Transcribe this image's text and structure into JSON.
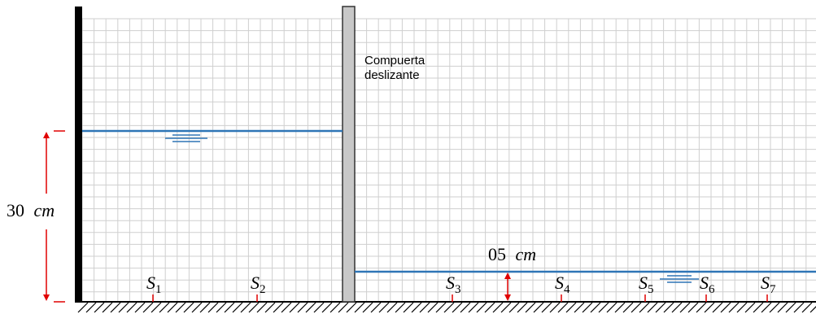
{
  "gate": {
    "label_line1": "Compuerta",
    "label_line2": "deslizante"
  },
  "dimensions": {
    "left_depth": {
      "value": "30",
      "unit": "cm"
    },
    "right_depth": {
      "value": "05",
      "unit": "cm"
    }
  },
  "sections": [
    {
      "letter": "S",
      "sub": "1"
    },
    {
      "letter": "S",
      "sub": "2"
    },
    {
      "letter": "S",
      "sub": "3"
    },
    {
      "letter": "S",
      "sub": "4"
    },
    {
      "letter": "S",
      "sub": "5"
    },
    {
      "letter": "S",
      "sub": "6"
    },
    {
      "letter": "S",
      "sub": "7"
    }
  ],
  "colors": {
    "water": "#2e75b6",
    "dimension": "#e00000",
    "grid": "#cfcfcf",
    "gate": "#c8c8c8",
    "wall": "#000000"
  }
}
